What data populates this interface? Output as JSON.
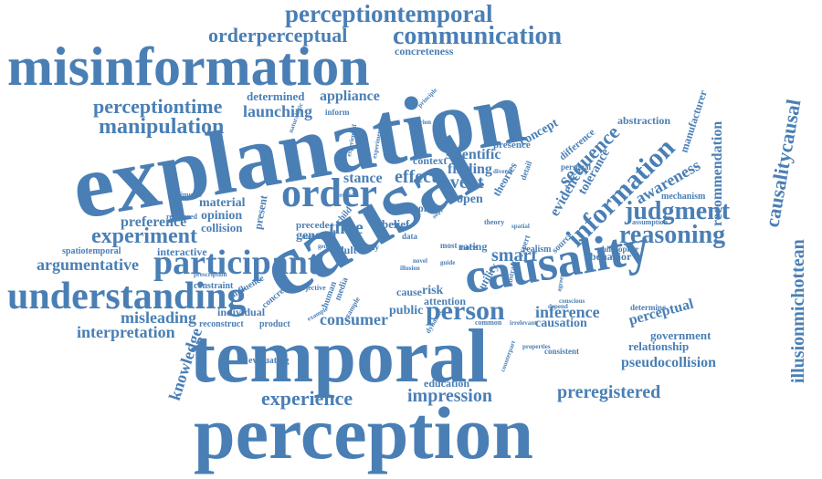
{
  "word_cloud": {
    "color": "#4a7fb5",
    "words": [
      {
        "text": "perceptiontemporal"
      },
      {
        "text": "orderperceptual"
      },
      {
        "text": "communication"
      },
      {
        "text": "concreteness"
      },
      {
        "text": "misinformation"
      },
      {
        "text": "explanation"
      },
      {
        "text": "perceptiontime"
      },
      {
        "text": "determined"
      },
      {
        "text": "appliance"
      },
      {
        "text": "launching"
      },
      {
        "text": "manipulation"
      },
      {
        "text": "abstraction"
      },
      {
        "text": "recommendation"
      },
      {
        "text": "manufacturer"
      },
      {
        "text": "causalitycausal"
      },
      {
        "text": "illusionmichottean"
      },
      {
        "text": "order"
      },
      {
        "text": "causal"
      },
      {
        "text": "information"
      },
      {
        "text": "sequence"
      },
      {
        "text": "awareness"
      },
      {
        "text": "judgment"
      },
      {
        "text": "reasoning"
      },
      {
        "text": "causality"
      },
      {
        "text": "participant"
      },
      {
        "text": "understanding"
      },
      {
        "text": "temporal"
      },
      {
        "text": "perception"
      },
      {
        "text": "experiment"
      },
      {
        "text": "preference"
      },
      {
        "text": "argumentative"
      },
      {
        "text": "interpretation"
      },
      {
        "text": "misleading"
      },
      {
        "text": "knowledge"
      },
      {
        "text": "experience"
      },
      {
        "text": "impression"
      },
      {
        "text": "preregistered"
      },
      {
        "text": "education"
      },
      {
        "text": "person"
      },
      {
        "text": "consumer"
      },
      {
        "text": "inference"
      },
      {
        "text": "causation"
      },
      {
        "text": "perceptual"
      },
      {
        "text": "government"
      },
      {
        "text": "relationship"
      },
      {
        "text": "pseudocollision"
      },
      {
        "text": "scientific"
      },
      {
        "text": "effect"
      },
      {
        "text": "event"
      },
      {
        "text": "finding"
      },
      {
        "text": "context"
      },
      {
        "text": "presence"
      },
      {
        "text": "concept"
      },
      {
        "text": "evidence"
      },
      {
        "text": "tolerance"
      },
      {
        "text": "time"
      },
      {
        "text": "open"
      },
      {
        "text": "smart"
      },
      {
        "text": "public"
      },
      {
        "text": "risk"
      },
      {
        "text": "cause"
      },
      {
        "text": "attention"
      },
      {
        "text": "material"
      },
      {
        "text": "opinion"
      },
      {
        "text": "collision"
      },
      {
        "text": "stance"
      },
      {
        "text": "belief"
      },
      {
        "text": "general"
      },
      {
        "text": "precede"
      },
      {
        "text": "interactive"
      },
      {
        "text": "spatiotemporal"
      },
      {
        "text": "individual"
      },
      {
        "text": "reconstruct"
      },
      {
        "text": "product"
      },
      {
        "text": "evaluating"
      },
      {
        "text": "behavior"
      },
      {
        "text": "mechanism"
      },
      {
        "text": "constraint"
      },
      {
        "text": "influence"
      },
      {
        "text": "concrete"
      },
      {
        "text": "present"
      },
      {
        "text": "adult"
      },
      {
        "text": "study"
      },
      {
        "text": "rating"
      },
      {
        "text": "utility"
      },
      {
        "text": "realism"
      },
      {
        "text": "source"
      },
      {
        "text": "philosopher"
      },
      {
        "text": "assumption"
      },
      {
        "text": "determine"
      },
      {
        "text": "consistent"
      },
      {
        "text": "personal"
      },
      {
        "text": "difference"
      },
      {
        "text": "theories"
      },
      {
        "text": "data"
      },
      {
        "text": "most"
      },
      {
        "text": "more"
      },
      {
        "text": "strong"
      },
      {
        "text": "human"
      },
      {
        "text": "media"
      },
      {
        "text": "objective"
      },
      {
        "text": "common"
      },
      {
        "text": "irrelevant"
      },
      {
        "text": "example"
      },
      {
        "text": "dynamic"
      },
      {
        "text": "reordered"
      },
      {
        "text": "stimulus"
      },
      {
        "text": "prescription"
      },
      {
        "text": "inform"
      },
      {
        "text": "criterion"
      },
      {
        "text": "principle"
      },
      {
        "text": "naturalistic"
      },
      {
        "text": "experienced"
      },
      {
        "text": "experimental"
      },
      {
        "text": "predict"
      },
      {
        "text": "child"
      },
      {
        "text": "detail"
      },
      {
        "text": "diverse"
      },
      {
        "text": "expert"
      },
      {
        "text": "studies"
      },
      {
        "text": "gender"
      },
      {
        "text": "illusion"
      },
      {
        "text": "guide"
      },
      {
        "text": "novel"
      },
      {
        "text": "theory"
      },
      {
        "text": "spatial"
      },
      {
        "text": "abstract"
      },
      {
        "text": "agreement"
      },
      {
        "text": "properties"
      },
      {
        "text": "counterpart"
      },
      {
        "text": "example"
      },
      {
        "text": "support"
      },
      {
        "text": "depend"
      },
      {
        "text": "conscious"
      }
    ]
  }
}
